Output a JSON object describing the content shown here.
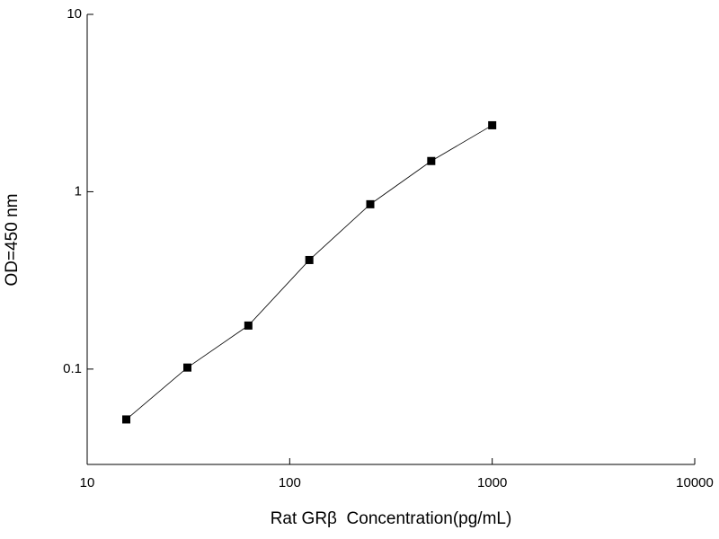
{
  "chart_data": {
    "type": "line",
    "x_label": "Rat GRβ  Concentration(pg/mL)",
    "y_label": "OD=450 nm",
    "x": [
      15.6,
      31.25,
      62.5,
      125,
      250,
      500,
      1000
    ],
    "series": [
      {
        "color": "#000000",
        "values": [
          0.052,
          0.102,
          0.176,
          0.412,
          0.85,
          1.49,
          2.37
        ]
      }
    ],
    "xlog": true,
    "ylog": true,
    "xlim": [
      10,
      10000
    ],
    "ylim": [
      0.029,
      10
    ],
    "xticks": [
      10,
      100,
      1000,
      10000
    ],
    "yticks": [
      0.1,
      1,
      10
    ]
  }
}
